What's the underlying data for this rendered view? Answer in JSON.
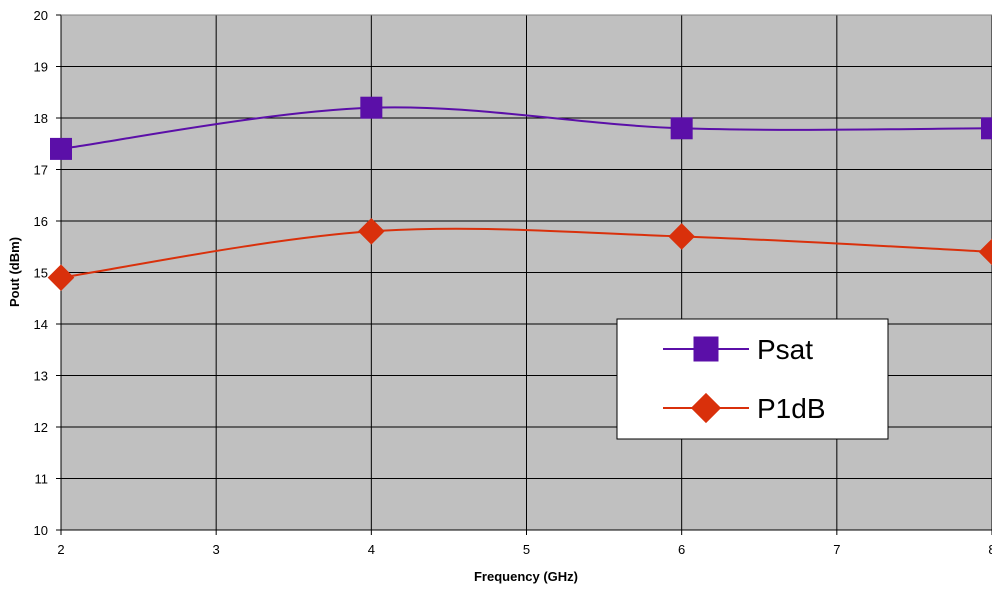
{
  "chart_data": {
    "type": "line",
    "title": "",
    "xlabel": "Frequency (GHz)",
    "ylabel": "Pout (dBm)",
    "xlim": [
      2,
      8
    ],
    "ylim": [
      10,
      20
    ],
    "x_ticks": [
      "2",
      "3",
      "4",
      "5",
      "6",
      "7",
      "8"
    ],
    "y_ticks": [
      "10",
      "11",
      "12",
      "13",
      "14",
      "15",
      "16",
      "17",
      "18",
      "19",
      "20"
    ],
    "grid": true,
    "legend_position": "right",
    "plot_background": "#c0c0c0",
    "series": [
      {
        "name": "Psat",
        "color": "#5b0fa8",
        "marker": "square",
        "x": [
          2,
          4,
          6,
          8
        ],
        "y": [
          17.4,
          18.2,
          17.8,
          17.8
        ]
      },
      {
        "name": "P1dB",
        "color": "#d9300b",
        "marker": "diamond",
        "x": [
          2,
          4,
          6,
          8
        ],
        "y": [
          14.9,
          15.8,
          15.7,
          15.4
        ]
      }
    ]
  }
}
